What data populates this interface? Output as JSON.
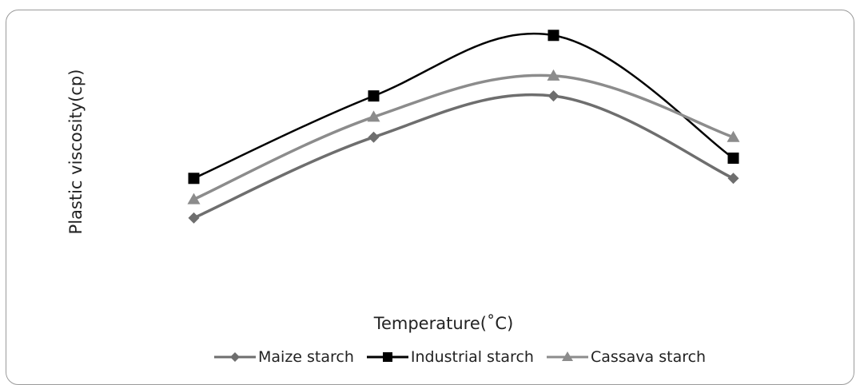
{
  "chart_data": {
    "type": "line",
    "title": "",
    "xlabel": "Temperature(˚C)",
    "ylabel": "Plastic viscosity(cp)",
    "x": [
      1,
      2,
      3,
      4
    ],
    "ylim": [
      0,
      35
    ],
    "grid": false,
    "legend_position": "bottom",
    "series": [
      {
        "name": "Maize starch",
        "values": [
          10.0,
          20.0,
          25.1,
          14.9
        ],
        "color": "#6e6e6e",
        "marker": "diamond"
      },
      {
        "name": "Industrial starch",
        "values": [
          14.9,
          25.1,
          32.6,
          17.4
        ],
        "color": "#000000",
        "marker": "square"
      },
      {
        "name": "Cassava starch",
        "values": [
          12.3,
          22.5,
          27.6,
          20.0
        ],
        "color": "#8c8c8c",
        "marker": "triangle"
      }
    ]
  }
}
